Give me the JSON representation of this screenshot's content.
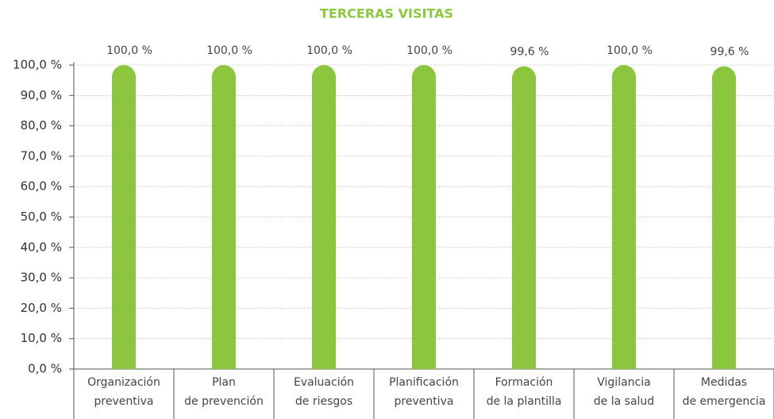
{
  "chart_data": {
    "type": "bar",
    "title": "TERCERAS VISITAS",
    "categories": [
      [
        "Organización",
        "preventiva"
      ],
      [
        "Plan",
        "de prevención"
      ],
      [
        "Evaluación",
        "de riesgos"
      ],
      [
        "Planificación",
        "preventiva"
      ],
      [
        "Formación",
        "de la plantilla"
      ],
      [
        "Vigilancia",
        "de la salud"
      ],
      [
        "Medidas",
        "de emergencia"
      ]
    ],
    "values": [
      100,
      100,
      100,
      100,
      99.6,
      100,
      99.6
    ],
    "value_labels": [
      "100,0 %",
      "100,0 %",
      "100,0 %",
      "100,0 %",
      "99,6 %",
      "100,0 %",
      "99,6 %"
    ],
    "color": "#8cc63f",
    "ylim": [
      0,
      100
    ],
    "yticks": [
      {
        "value": 0,
        "label": "0,0 %"
      },
      {
        "value": 10,
        "label": "10,0 %"
      },
      {
        "value": 20,
        "label": "20,0 %"
      },
      {
        "value": 30,
        "label": "30,0 %"
      },
      {
        "value": 40,
        "label": "40,0 %"
      },
      {
        "value": 50,
        "label": "50,0 %"
      },
      {
        "value": 60,
        "label": "60,0 %"
      },
      {
        "value": 70,
        "label": "70,0 %"
      },
      {
        "value": 80,
        "label": "80,0 %"
      },
      {
        "value": 90,
        "label": "90,0 %"
      },
      {
        "value": 100,
        "label": "100,0 %"
      }
    ],
    "grid": true
  }
}
